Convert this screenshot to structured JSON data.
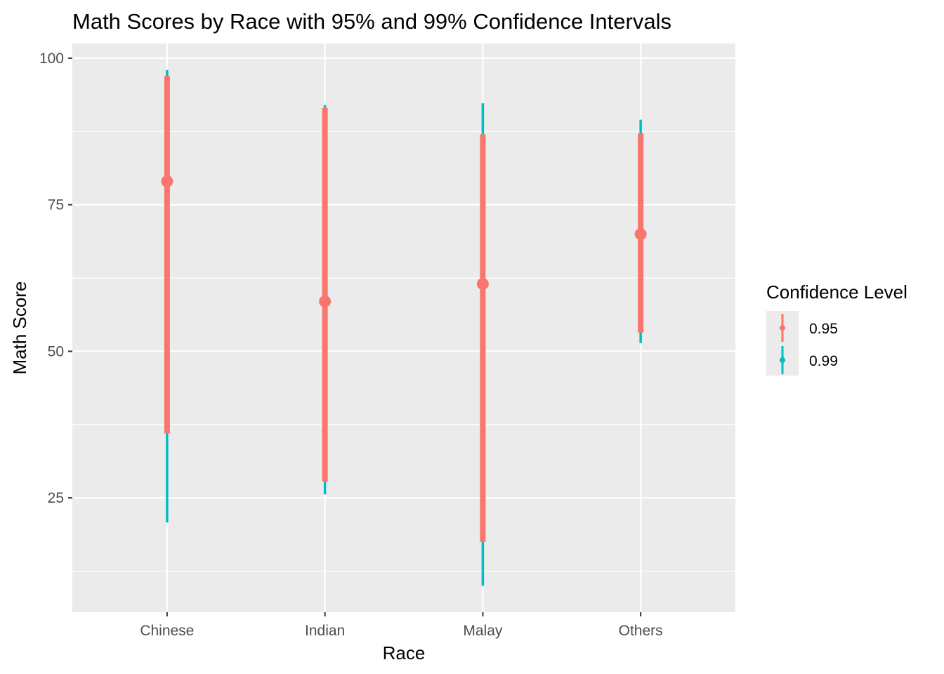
{
  "chart_data": {
    "type": "errorbar",
    "title": "Math Scores by Race with 95% and 99% Confidence Intervals",
    "xlabel": "Race",
    "ylabel": "Math Score",
    "categories": [
      "Chinese",
      "Indian",
      "Malay",
      "Others"
    ],
    "means": [
      79.0,
      58.5,
      61.5,
      70.0
    ],
    "ylim": [
      5.5,
      102.5
    ],
    "yticks": [
      25,
      50,
      75,
      100
    ],
    "y_minor_ticks": [
      12.5,
      37.5,
      62.5,
      87.5
    ],
    "grid": true,
    "legend": {
      "title": "Confidence Level",
      "position": "right"
    },
    "series": [
      {
        "name": "0.99",
        "color": "#00BFC4",
        "lower": [
          20.8,
          25.6,
          10.0,
          51.4
        ],
        "upper": [
          98.0,
          92.0,
          92.3,
          89.5
        ]
      },
      {
        "name": "0.95",
        "color": "#F8766D",
        "lower": [
          36.0,
          27.8,
          17.5,
          53.2
        ],
        "upper": [
          97.0,
          91.5,
          87.0,
          87.2
        ]
      }
    ]
  }
}
